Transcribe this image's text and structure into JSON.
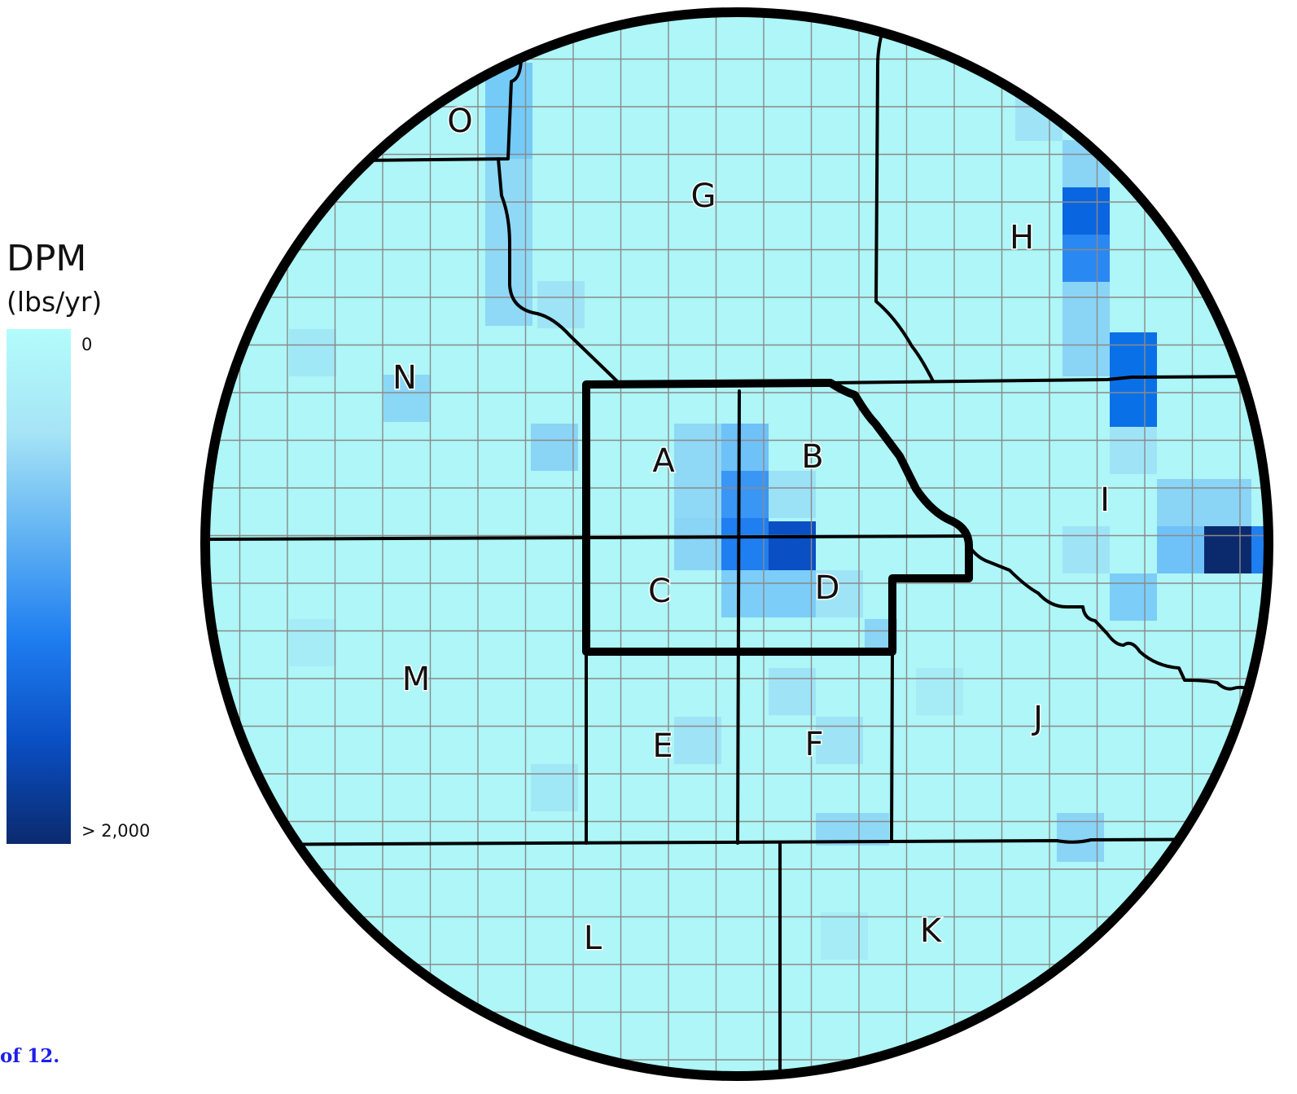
{
  "legend": {
    "title": "DPM",
    "units": "(lbs/yr)",
    "min_label": "0",
    "max_label": "> 2,000",
    "colors": [
      "#0b2a6e",
      "#0a4fc4",
      "#1f7ef0",
      "#62b3f3",
      "#a6e4f6",
      "#b3fcfb"
    ]
  },
  "page_fragment": "of 12.",
  "map": {
    "zones": [
      "A",
      "B",
      "C",
      "D",
      "E",
      "F",
      "G",
      "H",
      "I",
      "J",
      "K",
      "L",
      "M",
      "N",
      "O"
    ],
    "colors": {
      "base": "#aef6f7",
      "cell_grid": "#8a8a8a",
      "boundary": "#000000"
    },
    "emission_cells": [
      {
        "level": 1.0,
        "zone": "I"
      },
      {
        "level": 0.85,
        "zone": "D"
      },
      {
        "level": 0.75,
        "zone": "C"
      },
      {
        "level": 0.7,
        "zone": "H"
      },
      {
        "level": 0.68,
        "zone": "I"
      },
      {
        "level": 0.62,
        "zone": "I"
      },
      {
        "level": 0.6,
        "zone": "H"
      },
      {
        "level": 0.55,
        "zone": "B"
      },
      {
        "level": 0.55,
        "zone": "I"
      }
    ]
  }
}
